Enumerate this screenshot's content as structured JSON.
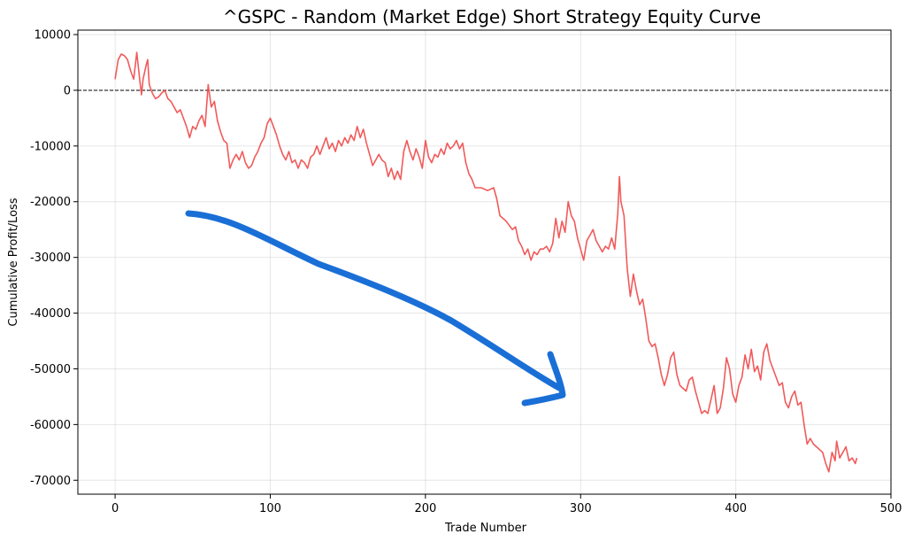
{
  "chart_data": {
    "type": "line",
    "title": "^GSPC - Random (Market Edge) Short Strategy Equity Curve",
    "xlabel": "Trade Number",
    "ylabel": "Cumulative Profit/Loss",
    "xlim": [
      -24,
      500
    ],
    "ylim": [
      -72500,
      10800
    ],
    "xticks": [
      0,
      100,
      200,
      300,
      400,
      500
    ],
    "yticks": [
      10000,
      0,
      -10000,
      -20000,
      -30000,
      -40000,
      -50000,
      -60000,
      -70000
    ],
    "grid": true,
    "series": [
      {
        "color": "#f04848",
        "points": [
          [
            0,
            2000
          ],
          [
            2,
            5500
          ],
          [
            4,
            6500
          ],
          [
            6,
            6200
          ],
          [
            8,
            5500
          ],
          [
            10,
            3500
          ],
          [
            12,
            2000
          ],
          [
            14,
            6800
          ],
          [
            16,
            1500
          ],
          [
            17,
            -800
          ],
          [
            18,
            2000
          ],
          [
            20,
            4500
          ],
          [
            21,
            5500
          ],
          [
            22,
            1000
          ],
          [
            24,
            -500
          ],
          [
            26,
            -1500
          ],
          [
            28,
            -1200
          ],
          [
            30,
            -500
          ],
          [
            32,
            0
          ],
          [
            34,
            -1500
          ],
          [
            36,
            -2000
          ],
          [
            38,
            -3000
          ],
          [
            40,
            -4000
          ],
          [
            42,
            -3500
          ],
          [
            44,
            -5000
          ],
          [
            46,
            -6500
          ],
          [
            48,
            -8500
          ],
          [
            50,
            -6500
          ],
          [
            52,
            -7000
          ],
          [
            54,
            -5500
          ],
          [
            56,
            -4500
          ],
          [
            58,
            -6500
          ],
          [
            60,
            1000
          ],
          [
            62,
            -3000
          ],
          [
            64,
            -2000
          ],
          [
            66,
            -5500
          ],
          [
            68,
            -7500
          ],
          [
            70,
            -9000
          ],
          [
            72,
            -9500
          ],
          [
            74,
            -14000
          ],
          [
            76,
            -12500
          ],
          [
            78,
            -11500
          ],
          [
            80,
            -12500
          ],
          [
            82,
            -11000
          ],
          [
            84,
            -13000
          ],
          [
            86,
            -14000
          ],
          [
            88,
            -13500
          ],
          [
            90,
            -12000
          ],
          [
            92,
            -11000
          ],
          [
            94,
            -9500
          ],
          [
            96,
            -8500
          ],
          [
            98,
            -6000
          ],
          [
            100,
            -5000
          ],
          [
            102,
            -6500
          ],
          [
            104,
            -8000
          ],
          [
            106,
            -10000
          ],
          [
            108,
            -11500
          ],
          [
            110,
            -12500
          ],
          [
            112,
            -11000
          ],
          [
            114,
            -13000
          ],
          [
            116,
            -12500
          ],
          [
            118,
            -14000
          ],
          [
            120,
            -12500
          ],
          [
            122,
            -13000
          ],
          [
            124,
            -14000
          ],
          [
            126,
            -12000
          ],
          [
            128,
            -11500
          ],
          [
            130,
            -10000
          ],
          [
            132,
            -11500
          ],
          [
            134,
            -10000
          ],
          [
            136,
            -8500
          ],
          [
            138,
            -10500
          ],
          [
            140,
            -9500
          ],
          [
            142,
            -11000
          ],
          [
            144,
            -9000
          ],
          [
            146,
            -10000
          ],
          [
            148,
            -8500
          ],
          [
            150,
            -9500
          ],
          [
            152,
            -8000
          ],
          [
            154,
            -9000
          ],
          [
            156,
            -6500
          ],
          [
            158,
            -8500
          ],
          [
            160,
            -7000
          ],
          [
            162,
            -9500
          ],
          [
            164,
            -11500
          ],
          [
            166,
            -13500
          ],
          [
            168,
            -12500
          ],
          [
            170,
            -11500
          ],
          [
            172,
            -12500
          ],
          [
            174,
            -13000
          ],
          [
            176,
            -15500
          ],
          [
            178,
            -14000
          ],
          [
            180,
            -16000
          ],
          [
            182,
            -14500
          ],
          [
            184,
            -16000
          ],
          [
            186,
            -11000
          ],
          [
            188,
            -9000
          ],
          [
            190,
            -11000
          ],
          [
            192,
            -12500
          ],
          [
            194,
            -10500
          ],
          [
            196,
            -12000
          ],
          [
            198,
            -14000
          ],
          [
            200,
            -9000
          ],
          [
            202,
            -12000
          ],
          [
            204,
            -13000
          ],
          [
            206,
            -11500
          ],
          [
            208,
            -12000
          ],
          [
            210,
            -10500
          ],
          [
            212,
            -11500
          ],
          [
            214,
            -9500
          ],
          [
            216,
            -10500
          ],
          [
            218,
            -10000
          ],
          [
            220,
            -9000
          ],
          [
            222,
            -10500
          ],
          [
            224,
            -9500
          ],
          [
            226,
            -13000
          ],
          [
            228,
            -15000
          ],
          [
            230,
            -16000
          ],
          [
            232,
            -17500
          ],
          [
            236,
            -17500
          ],
          [
            240,
            -18000
          ],
          [
            244,
            -17500
          ],
          [
            246,
            -19500
          ],
          [
            248,
            -22500
          ],
          [
            252,
            -23500
          ],
          [
            256,
            -25000
          ],
          [
            258,
            -24500
          ],
          [
            260,
            -27000
          ],
          [
            262,
            -28000
          ],
          [
            264,
            -29500
          ],
          [
            266,
            -28500
          ],
          [
            268,
            -30500
          ],
          [
            270,
            -29000
          ],
          [
            272,
            -29500
          ],
          [
            274,
            -28500
          ],
          [
            276,
            -28500
          ],
          [
            278,
            -28000
          ],
          [
            280,
            -29000
          ],
          [
            282,
            -27500
          ],
          [
            284,
            -23000
          ],
          [
            286,
            -26500
          ],
          [
            288,
            -23500
          ],
          [
            290,
            -25500
          ],
          [
            292,
            -20000
          ],
          [
            294,
            -22500
          ],
          [
            296,
            -23500
          ],
          [
            298,
            -26500
          ],
          [
            300,
            -28500
          ],
          [
            302,
            -30500
          ],
          [
            304,
            -27000
          ],
          [
            306,
            -26000
          ],
          [
            308,
            -25000
          ],
          [
            310,
            -27000
          ],
          [
            312,
            -28000
          ],
          [
            314,
            -29000
          ],
          [
            316,
            -28000
          ],
          [
            318,
            -28500
          ],
          [
            320,
            -26500
          ],
          [
            322,
            -28500
          ],
          [
            324,
            -22000
          ],
          [
            325,
            -15500
          ],
          [
            326,
            -20000
          ],
          [
            328,
            -22500
          ],
          [
            330,
            -32000
          ],
          [
            332,
            -37000
          ],
          [
            334,
            -33000
          ],
          [
            336,
            -36000
          ],
          [
            338,
            -38500
          ],
          [
            340,
            -37500
          ],
          [
            342,
            -41000
          ],
          [
            344,
            -45000
          ],
          [
            346,
            -46000
          ],
          [
            348,
            -45500
          ],
          [
            350,
            -48000
          ],
          [
            352,
            -51000
          ],
          [
            354,
            -53000
          ],
          [
            356,
            -51000
          ],
          [
            358,
            -48000
          ],
          [
            360,
            -47000
          ],
          [
            362,
            -51000
          ],
          [
            364,
            -53000
          ],
          [
            366,
            -53500
          ],
          [
            368,
            -54000
          ],
          [
            370,
            -52000
          ],
          [
            372,
            -51500
          ],
          [
            374,
            -54000
          ],
          [
            376,
            -56000
          ],
          [
            378,
            -58000
          ],
          [
            380,
            -57500
          ],
          [
            382,
            -58000
          ],
          [
            384,
            -55500
          ],
          [
            386,
            -53000
          ],
          [
            388,
            -58000
          ],
          [
            390,
            -57000
          ],
          [
            392,
            -53500
          ],
          [
            394,
            -48000
          ],
          [
            396,
            -50000
          ],
          [
            398,
            -54500
          ],
          [
            400,
            -56000
          ],
          [
            402,
            -53000
          ],
          [
            404,
            -51500
          ],
          [
            406,
            -47500
          ],
          [
            408,
            -50000
          ],
          [
            410,
            -46500
          ],
          [
            412,
            -50500
          ],
          [
            414,
            -49500
          ],
          [
            416,
            -52000
          ],
          [
            418,
            -47000
          ],
          [
            420,
            -45500
          ],
          [
            422,
            -48500
          ],
          [
            424,
            -50000
          ],
          [
            426,
            -51500
          ],
          [
            428,
            -53000
          ],
          [
            430,
            -52500
          ],
          [
            432,
            -56000
          ],
          [
            434,
            -57000
          ],
          [
            436,
            -55000
          ],
          [
            438,
            -54000
          ],
          [
            440,
            -56500
          ],
          [
            442,
            -56000
          ],
          [
            444,
            -60000
          ],
          [
            446,
            -63500
          ],
          [
            448,
            -62500
          ],
          [
            450,
            -63500
          ],
          [
            452,
            -64000
          ],
          [
            454,
            -64500
          ],
          [
            456,
            -65000
          ],
          [
            458,
            -67000
          ],
          [
            460,
            -68500
          ],
          [
            462,
            -65000
          ],
          [
            464,
            -66500
          ],
          [
            465,
            -63000
          ],
          [
            467,
            -66000
          ],
          [
            469,
            -65000
          ],
          [
            471,
            -64000
          ],
          [
            473,
            -66500
          ],
          [
            475,
            -66000
          ],
          [
            477,
            -67000
          ],
          [
            478,
            -66000
          ]
        ]
      }
    ],
    "annotations": [
      {
        "type": "hline",
        "y": 0,
        "style": "dashed",
        "color": "#000000"
      },
      {
        "type": "hand-drawn-arrow",
        "color": "#1a6fd6",
        "direction": "down-right"
      }
    ]
  }
}
